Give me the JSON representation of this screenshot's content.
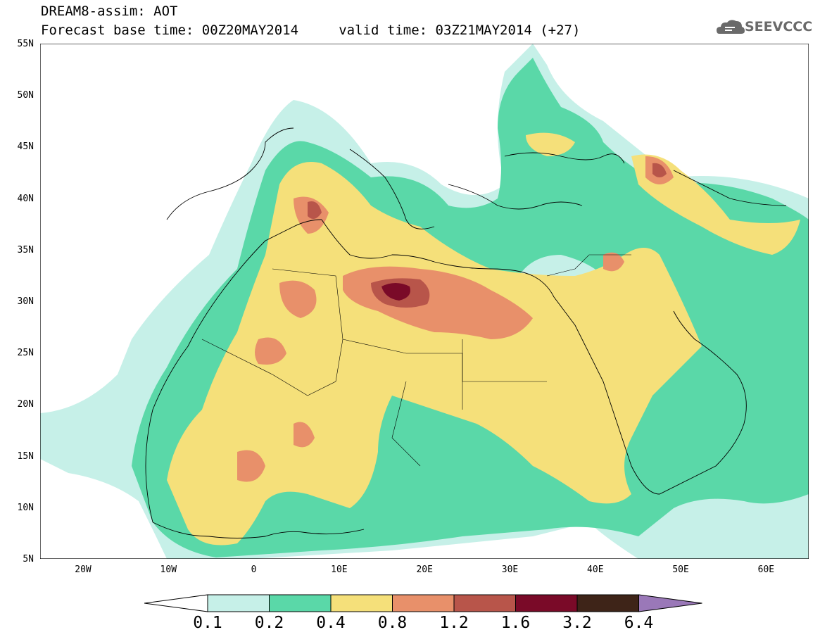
{
  "header": {
    "title_line1": "DREAM8-assim: AOT",
    "title_line2": "Forecast base time: 00Z20MAY2014     valid time: 03Z21MAY2014 (+27)"
  },
  "logo": {
    "text": "SEEVCCC",
    "icon": "cloud-icon"
  },
  "axes": {
    "lat_labels": [
      "55N",
      "50N",
      "45N",
      "40N",
      "35N",
      "30N",
      "25N",
      "20N",
      "15N",
      "10N",
      "5N"
    ],
    "lon_labels": [
      "20W",
      "10W",
      "0",
      "10E",
      "20E",
      "30E",
      "40E",
      "50E",
      "60E"
    ]
  },
  "legend": {
    "labels": [
      "0.1",
      "0.2",
      "0.4",
      "0.8",
      "1.2",
      "1.6",
      "3.2",
      "6.4"
    ],
    "colors": [
      "#ffffff",
      "#c6f0e8",
      "#5ad8a8",
      "#f5e07a",
      "#e8906a",
      "#b8554a",
      "#7a0a28",
      "#3e2418",
      "#9a78b8"
    ]
  }
}
